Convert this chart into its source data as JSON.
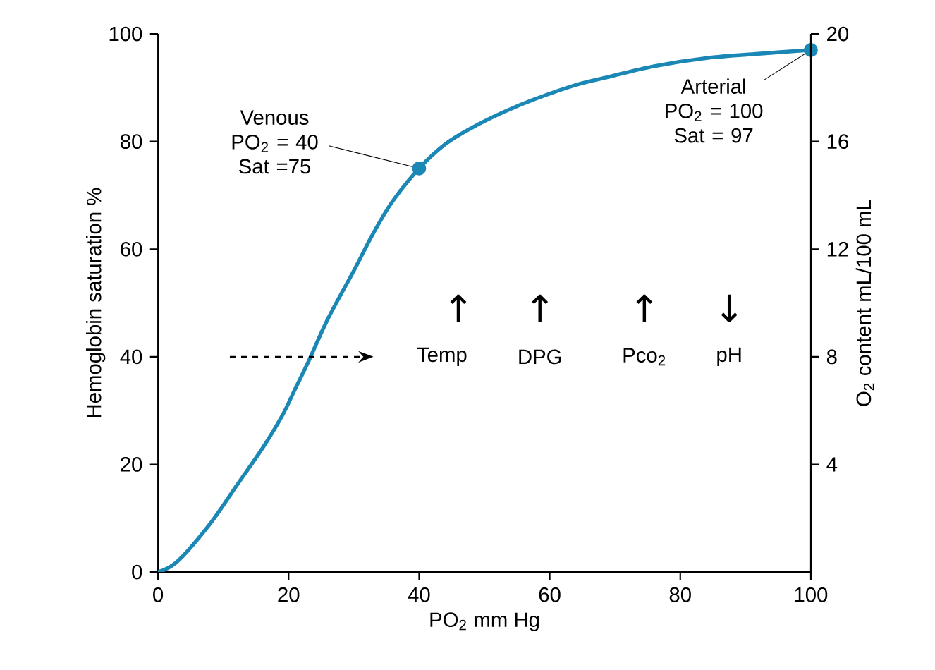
{
  "chart_data": {
    "type": "line",
    "xlabel": "PO$_{2}$ mm Hg",
    "ylabel": "Hemoglobin saturation %",
    "y2label": "O$_{2}$ content mL/100 mL",
    "xlim": [
      0,
      100
    ],
    "xticks": [
      0,
      20,
      40,
      60,
      80,
      100
    ],
    "ylim": [
      0,
      100
    ],
    "yticks": [
      0,
      20,
      40,
      60,
      80,
      100
    ],
    "y2lim": [
      0,
      20
    ],
    "y2ticks": [
      4,
      8,
      12,
      16,
      20
    ],
    "series": [
      {
        "color": "#1a87b5",
        "x": [
          0,
          3,
          8,
          12,
          16,
          19,
          21,
          23,
          26,
          30,
          33,
          36,
          40,
          44,
          48,
          53,
          58,
          64,
          69,
          76,
          84,
          92,
          100
        ],
        "values": [
          0,
          2,
          9,
          16,
          23,
          29,
          34,
          39,
          47,
          56,
          63,
          69,
          75,
          79.5,
          82.5,
          85.5,
          88,
          90.5,
          92,
          94,
          95.5,
          96.3,
          97
        ]
      },
      {
        "type": "scatter",
        "marker": "circle",
        "color": "#1a87b5",
        "x": [
          40,
          100
        ],
        "values": [
          75,
          97
        ]
      }
    ],
    "annotations": [
      {
        "text": "Venous PO$_{2}$ = 40 Sat =75",
        "x": 40,
        "y": 75
      },
      {
        "text": "Arterial PO$_{2}$ = 100 Sat = 97",
        "x": 100,
        "y": 97
      },
      "↑",
      "↑",
      "↑",
      "↓",
      "Temp",
      "DPG",
      "Pco$_{2}$",
      "pH"
    ]
  }
}
